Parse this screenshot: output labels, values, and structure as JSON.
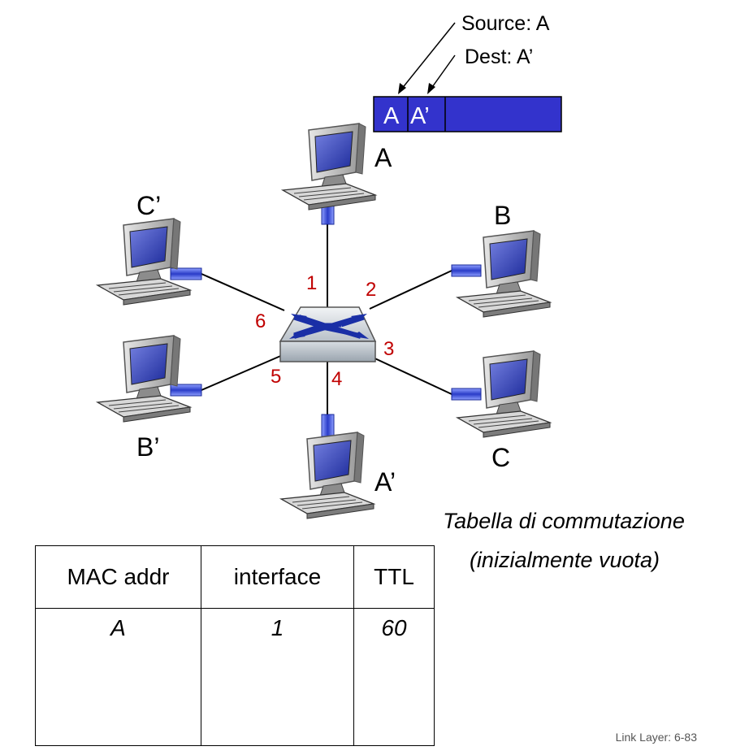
{
  "frame": {
    "src_label": "A",
    "dst_label": "A’",
    "color": "#3333cc"
  },
  "callouts": {
    "source": "Source: A",
    "dest": "Dest: A’"
  },
  "hosts": {
    "a": "A",
    "b": "B",
    "c": "C",
    "a_prime": "A’",
    "b_prime": "B’",
    "c_prime": "C’"
  },
  "ports": {
    "p1": "1",
    "p2": "2",
    "p3": "3",
    "p4": "4",
    "p5": "5",
    "p6": "6"
  },
  "caption": {
    "line1": "Tabella di commutazione",
    "line2": "(inizialmente vuota)"
  },
  "table": {
    "headers": [
      "MAC addr",
      "interface",
      "TTL"
    ],
    "row": {
      "mac": "A",
      "interface": "1",
      "ttl": "60"
    }
  },
  "footer": "Link Layer: 6-83",
  "colors": {
    "port_label": "#c00000",
    "switch_arrows": "#1a2fa6",
    "screen": "#3c4fc0"
  }
}
